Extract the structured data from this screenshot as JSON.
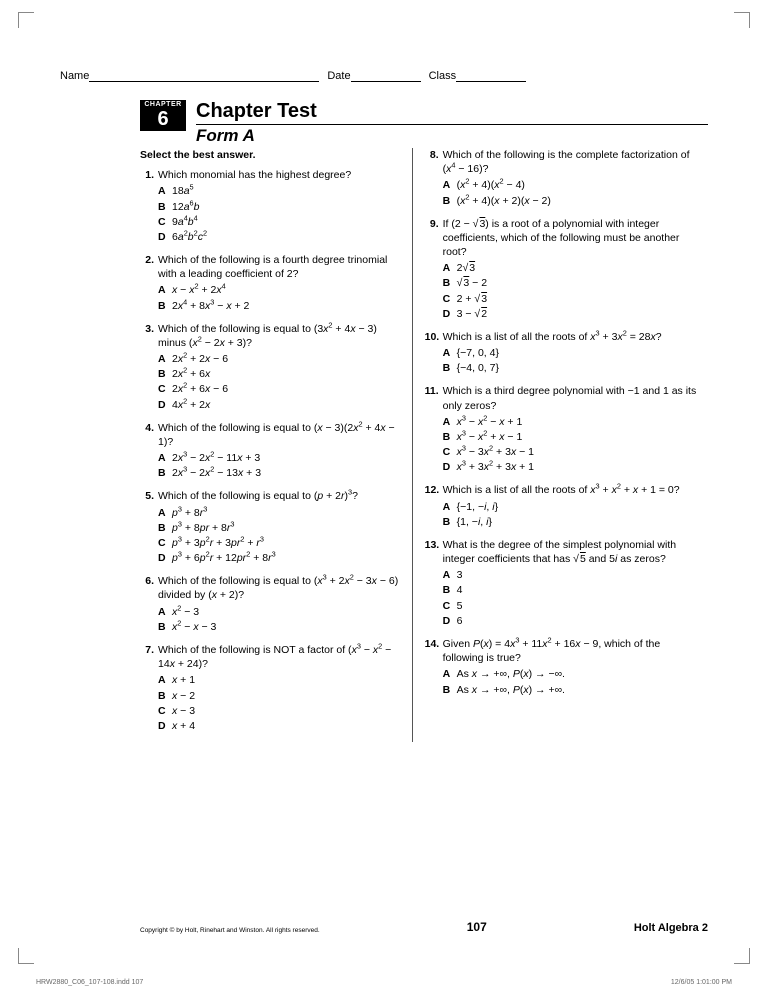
{
  "header": {
    "name_label": "Name",
    "date_label": "Date",
    "class_label": "Class"
  },
  "chapter": {
    "badge_label": "CHAPTER",
    "badge_num": "6",
    "title": "Chapter Test",
    "subtitle": "Form A"
  },
  "instruction": "Select the best answer.",
  "col_left": [
    {
      "n": "1.",
      "prompt": "Which monomial has the highest degree?",
      "opts": [
        {
          "l": "A",
          "v": "18<span class='ital'>a</span><sup>5</sup>"
        },
        {
          "l": "B",
          "v": "12<span class='ital'>a</span><sup>6</sup><span class='ital'>b</span>"
        },
        {
          "l": "C",
          "v": "9<span class='ital'>a</span><sup>4</sup><span class='ital'>b</span><sup>4</sup>"
        },
        {
          "l": "D",
          "v": "6<span class='ital'>a</span><sup>2</sup><span class='ital'>b</span><sup>2</sup><span class='ital'>c</span><sup>2</sup>"
        }
      ]
    },
    {
      "n": "2.",
      "prompt": "Which of the following is a fourth degree trinomial with a leading coefficient of 2?",
      "opts": [
        {
          "l": "A",
          "v": "<span class='ital'>x</span> − <span class='ital'>x</span><sup>2</sup> + 2<span class='ital'>x</span><sup>4</sup>"
        },
        {
          "l": "B",
          "v": "2<span class='ital'>x</span><sup>4</sup> + 8<span class='ital'>x</span><sup>3</sup> − <span class='ital'>x</span> + 2"
        }
      ]
    },
    {
      "n": "3.",
      "prompt": "Which of the following is equal to (3<span class='ital'>x</span><sup>2</sup> + 4<span class='ital'>x</span> − 3) minus (<span class='ital'>x</span><sup>2</sup> − 2<span class='ital'>x</span> + 3)?",
      "opts": [
        {
          "l": "A",
          "v": "2<span class='ital'>x</span><sup>2</sup> + 2<span class='ital'>x</span> − 6"
        },
        {
          "l": "B",
          "v": "2<span class='ital'>x</span><sup>2</sup> + 6<span class='ital'>x</span>"
        },
        {
          "l": "C",
          "v": "2<span class='ital'>x</span><sup>2</sup> + 6<span class='ital'>x</span> − 6"
        },
        {
          "l": "D",
          "v": "4<span class='ital'>x</span><sup>2</sup> + 2<span class='ital'>x</span>"
        }
      ]
    },
    {
      "n": "4.",
      "prompt": "Which of the following is equal to (<span class='ital'>x</span> − 3)(2<span class='ital'>x</span><sup>2</sup> + 4<span class='ital'>x</span> − 1)?",
      "opts": [
        {
          "l": "A",
          "v": "2<span class='ital'>x</span><sup>3</sup> − 2<span class='ital'>x</span><sup>2</sup> − 11<span class='ital'>x</span> + 3"
        },
        {
          "l": "B",
          "v": "2<span class='ital'>x</span><sup>3</sup> − 2<span class='ital'>x</span><sup>2</sup> − 13<span class='ital'>x</span> + 3"
        }
      ]
    },
    {
      "n": "5.",
      "prompt": "Which of the following is equal to (<span class='ital'>p</span> + 2<span class='ital'>r</span>)<sup>3</sup>?",
      "opts": [
        {
          "l": "A",
          "v": "<span class='ital'>p</span><sup>3</sup> + 8<span class='ital'>r</span><sup>3</sup>"
        },
        {
          "l": "B",
          "v": "<span class='ital'>p</span><sup>3</sup> + 8<span class='ital'>pr</span> + 8<span class='ital'>r</span><sup>3</sup>"
        },
        {
          "l": "C",
          "v": "<span class='ital'>p</span><sup>3</sup> + 3<span class='ital'>p</span><sup>2</sup><span class='ital'>r</span> + 3<span class='ital'>pr</span><sup>2</sup> + <span class='ital'>r</span><sup>3</sup>"
        },
        {
          "l": "D",
          "v": "<span class='ital'>p</span><sup>3</sup> + 6<span class='ital'>p</span><sup>2</sup><span class='ital'>r</span> + 12<span class='ital'>pr</span><sup>2</sup> + 8<span class='ital'>r</span><sup>3</sup>"
        }
      ]
    },
    {
      "n": "6.",
      "prompt": "Which of the following is equal to (<span class='ital'>x</span><sup>3</sup> + 2<span class='ital'>x</span><sup>2</sup> − 3<span class='ital'>x</span> − 6) divided by (<span class='ital'>x</span> + 2)?",
      "opts": [
        {
          "l": "A",
          "v": "<span class='ital'>x</span><sup>2</sup> − 3"
        },
        {
          "l": "B",
          "v": "<span class='ital'>x</span><sup>2</sup> − <span class='ital'>x</span> − 3"
        }
      ]
    },
    {
      "n": "7.",
      "prompt": "Which of the following is NOT a factor of (<span class='ital'>x</span><sup>3</sup> − <span class='ital'>x</span><sup>2</sup> − 14<span class='ital'>x</span> + 24)?",
      "opts": [
        {
          "l": "A",
          "v": "<span class='ital'>x</span> + 1"
        },
        {
          "l": "B",
          "v": "<span class='ital'>x</span> − 2"
        },
        {
          "l": "C",
          "v": "<span class='ital'>x</span> − 3"
        },
        {
          "l": "D",
          "v": "<span class='ital'>x</span> + 4"
        }
      ]
    }
  ],
  "col_right": [
    {
      "n": "8.",
      "prompt": "Which of the following is the complete factorization of (<span class='ital'>x</span><sup>4</sup> − 16)?",
      "opts": [
        {
          "l": "A",
          "v": "(<span class='ital'>x</span><sup>2</sup> + 4)(<span class='ital'>x</span><sup>2</sup> − 4)"
        },
        {
          "l": "B",
          "v": "(<span class='ital'>x</span><sup>2</sup> + 4)(<span class='ital'>x</span> + 2)(<span class='ital'>x</span> − 2)"
        }
      ]
    },
    {
      "n": "9.",
      "prompt": "If (2 − √<span class='sqrt'>3</span>) is a root of a polynomial with integer coefficients, which of the following must be another root?",
      "opts": [
        {
          "l": "A",
          "v": "2√<span class='sqrt'>3</span>"
        },
        {
          "l": "B",
          "v": "√<span class='sqrt'>3</span> − 2"
        },
        {
          "l": "C",
          "v": "2 + √<span class='sqrt'>3</span>"
        },
        {
          "l": "D",
          "v": "3 − √<span class='sqrt'>2</span>"
        }
      ]
    },
    {
      "n": "10.",
      "prompt": "Which is a list of all the roots of <span class='ital'>x</span><sup>3</sup> + 3<span class='ital'>x</span><sup>2</sup> = 28<span class='ital'>x</span>?",
      "opts": [
        {
          "l": "A",
          "v": "{−7, 0, 4}"
        },
        {
          "l": "B",
          "v": "{−4, 0, 7}"
        }
      ]
    },
    {
      "n": "11.",
      "prompt": "Which is a third degree polynomial with −1 and 1 as its only zeros?",
      "opts": [
        {
          "l": "A",
          "v": "<span class='ital'>x</span><sup>3</sup> − <span class='ital'>x</span><sup>2</sup> − <span class='ital'>x</span> + 1"
        },
        {
          "l": "B",
          "v": "<span class='ital'>x</span><sup>3</sup> − <span class='ital'>x</span><sup>2</sup> + <span class='ital'>x</span> − 1"
        },
        {
          "l": "C",
          "v": "<span class='ital'>x</span><sup>3</sup> − 3<span class='ital'>x</span><sup>2</sup> + 3<span class='ital'>x</span> − 1"
        },
        {
          "l": "D",
          "v": "<span class='ital'>x</span><sup>3</sup> + 3<span class='ital'>x</span><sup>2</sup> + 3<span class='ital'>x</span> + 1"
        }
      ]
    },
    {
      "n": "12.",
      "prompt": "Which is a list of all the roots of <span class='ital'>x</span><sup>3</sup> + <span class='ital'>x</span><sup>2</sup> + <span class='ital'>x</span> + 1 = 0?",
      "opts": [
        {
          "l": "A",
          "v": "{−1, −<span class='ital'>i</span>, <span class='ital'>i</span>}"
        },
        {
          "l": "B",
          "v": "{1, −<span class='ital'>i</span>, <span class='ital'>i</span>}"
        }
      ]
    },
    {
      "n": "13.",
      "prompt": "What is the degree of the simplest polynomial with integer coefficients that has √<span class='sqrt'>5</span> and 5<span class='ital'>i</span> as zeros?",
      "opts": [
        {
          "l": "A",
          "v": "3"
        },
        {
          "l": "B",
          "v": "4"
        },
        {
          "l": "C",
          "v": "5"
        },
        {
          "l": "D",
          "v": "6"
        }
      ]
    },
    {
      "n": "14.",
      "prompt": "Given <span class='ital'>P</span>(<span class='ital'>x</span>) = 4<span class='ital'>x</span><sup>3</sup> + 11<span class='ital'>x</span><sup>2</sup> + 16<span class='ital'>x</span> − 9, which of the following is true?",
      "opts": [
        {
          "l": "A",
          "v": "As <span class='ital'>x</span> → +∞, <span class='ital'>P</span>(<span class='ital'>x</span>) → −∞."
        },
        {
          "l": "B",
          "v": "As <span class='ital'>x</span> → +∞, <span class='ital'>P</span>(<span class='ital'>x</span>) → +∞."
        }
      ]
    }
  ],
  "footer": {
    "copyright": "Copyright © by Holt, Rinehart and Winston.\nAll rights reserved.",
    "page": "107",
    "book": "Holt Algebra 2"
  },
  "print_footer": {
    "file": "HRW2880_C06_107-108.indd  107",
    "timestamp": "12/6/05  1:01:00 PM"
  }
}
